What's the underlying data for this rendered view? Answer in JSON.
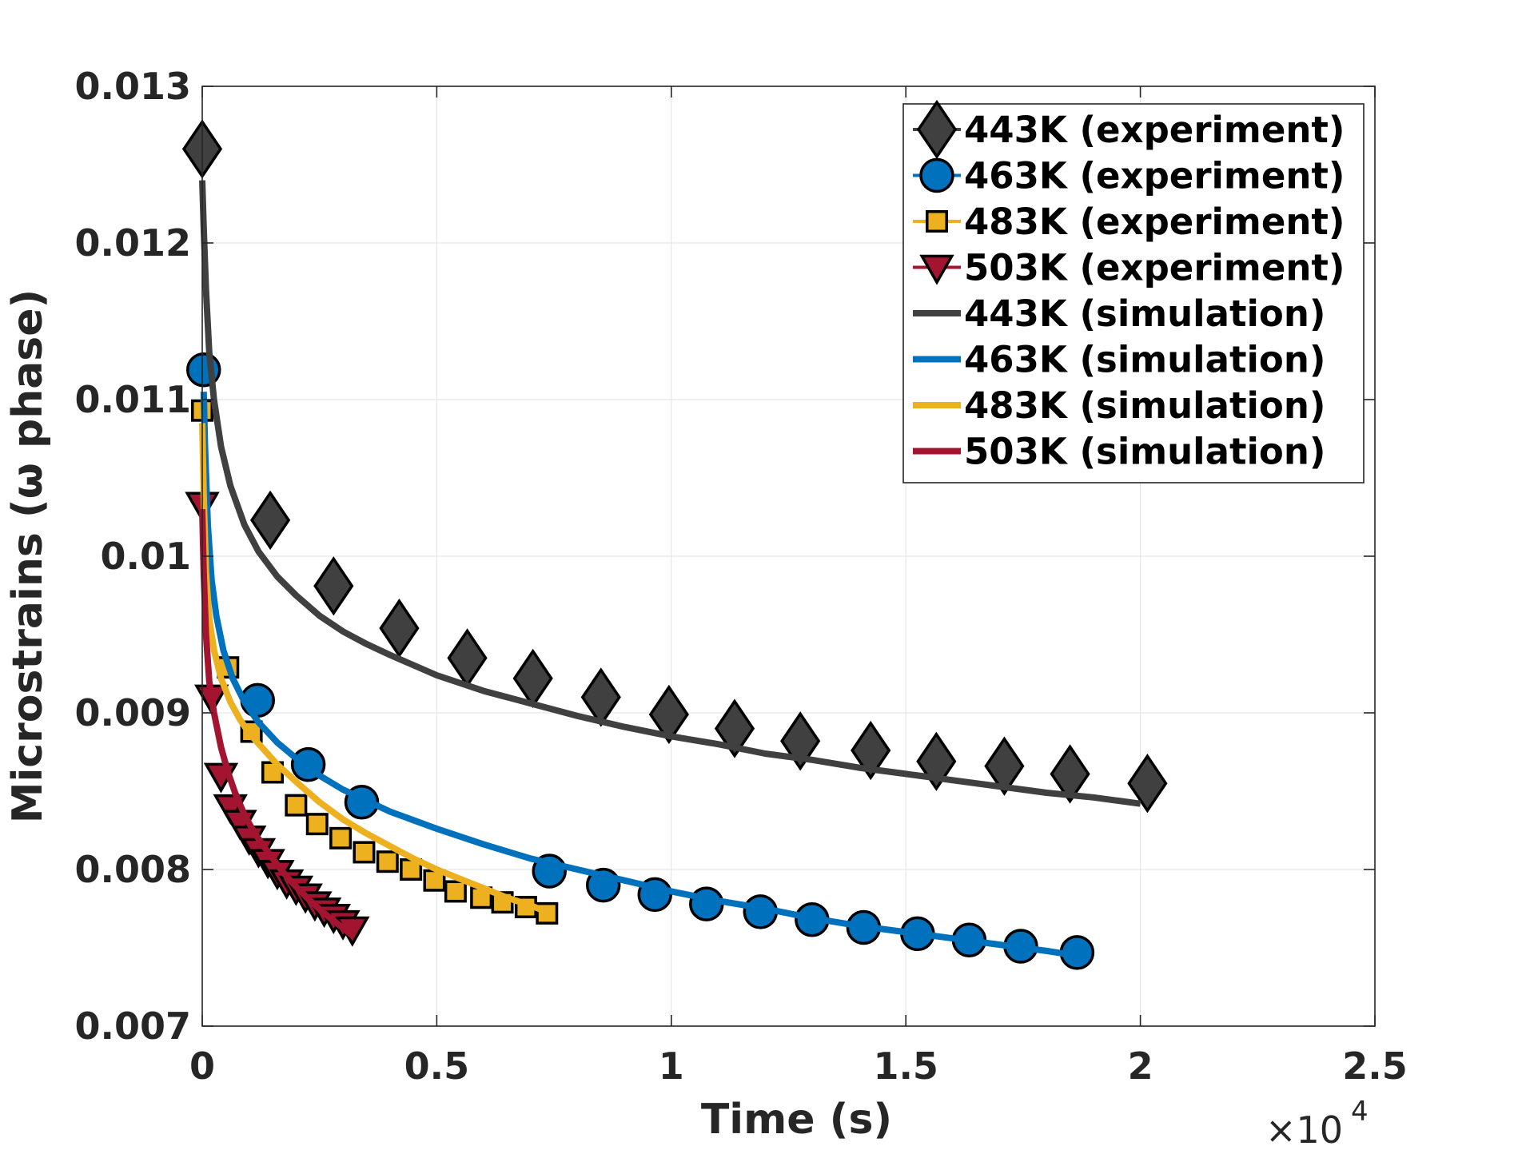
{
  "chart_data": {
    "type": "line",
    "xlabel": "Time (s)",
    "ylabel": "Microstrains (ω phase)",
    "x_exponent_label": "×10",
    "x_exponent_power": "4",
    "xlim": [
      0,
      25000
    ],
    "ylim": [
      0.007,
      0.013
    ],
    "x_ticks": [
      0,
      5000,
      10000,
      15000,
      20000,
      25000
    ],
    "x_tick_labels": [
      "0",
      "0.5",
      "1",
      "1.5",
      "2",
      "2.5"
    ],
    "y_ticks": [
      0.007,
      0.008,
      0.009,
      0.01,
      0.011,
      0.012,
      0.013
    ],
    "y_tick_labels": [
      "0.007",
      "0.008",
      "0.009",
      "0.01",
      "0.011",
      "0.012",
      "0.013"
    ],
    "grid": true,
    "legend_position": "top-right",
    "series": [
      {
        "name": "443K (experiment)",
        "kind": "markers",
        "marker": "diamond",
        "color": "#404040",
        "x": [
          0,
          1450,
          2800,
          4200,
          5650,
          7050,
          8500,
          9950,
          11350,
          12750,
          14250,
          15650,
          17100,
          18500,
          20150
        ],
        "y": [
          0.0126,
          0.01023,
          0.00981,
          0.00954,
          0.00935,
          0.00922,
          0.0091,
          0.00899,
          0.0089,
          0.00882,
          0.00876,
          0.00869,
          0.00866,
          0.00861,
          0.00855
        ]
      },
      {
        "name": "463K (experiment)",
        "kind": "markers",
        "marker": "circle",
        "color": "#0072bd",
        "x": [
          30,
          1180,
          2260,
          3400,
          7400,
          8550,
          9650,
          10750,
          11900,
          13000,
          14100,
          15250,
          16350,
          17450,
          18650
        ],
        "y": [
          0.01119,
          0.00908,
          0.00867,
          0.00843,
          0.00799,
          0.0079,
          0.00784,
          0.00778,
          0.00773,
          0.00768,
          0.00763,
          0.00759,
          0.00755,
          0.00751,
          0.00747
        ]
      },
      {
        "name": "483K (experiment)",
        "kind": "markers",
        "marker": "square",
        "color": "#edb120",
        "x": [
          0,
          550,
          1050,
          1500,
          2000,
          2450,
          2950,
          3450,
          3950,
          4450,
          4950,
          5400,
          5950,
          6400,
          6900,
          7350
        ],
        "y": [
          0.01093,
          0.00929,
          0.00888,
          0.00862,
          0.00841,
          0.00829,
          0.0082,
          0.00811,
          0.00805,
          0.008,
          0.00793,
          0.00786,
          0.00782,
          0.00779,
          0.00776,
          0.00772
        ]
      },
      {
        "name": "503K (experiment)",
        "kind": "markers",
        "marker": "triangle-down",
        "color": "#a2142f",
        "x": [
          0,
          200,
          400,
          600,
          800,
          1000,
          1200,
          1400,
          1600,
          1800,
          2000,
          2200,
          2400,
          2600,
          2800,
          3000,
          3200
        ],
        "y": [
          0.01033,
          0.0091,
          0.0086,
          0.0084,
          0.0083,
          0.0082,
          0.00812,
          0.00805,
          0.00798,
          0.00792,
          0.00788,
          0.00783,
          0.00778,
          0.00774,
          0.0077,
          0.00766,
          0.00762
        ]
      },
      {
        "name": "443K (simulation)",
        "kind": "line",
        "color": "#404040",
        "x": [
          0,
          30,
          80,
          150,
          250,
          400,
          600,
          900,
          1200,
          1600,
          2000,
          2500,
          3000,
          3500,
          4000,
          5000,
          6000,
          7000,
          8000,
          9000,
          10000,
          11000,
          12000,
          13000,
          14000,
          15000,
          16000,
          17000,
          18000,
          19000,
          20000
        ],
        "y": [
          0.0124,
          0.0121,
          0.0117,
          0.0113,
          0.011,
          0.0107,
          0.01045,
          0.0102,
          0.01003,
          0.00987,
          0.00975,
          0.00962,
          0.00952,
          0.00944,
          0.00937,
          0.00924,
          0.00914,
          0.00906,
          0.00898,
          0.00891,
          0.00885,
          0.0088,
          0.00874,
          0.0087,
          0.00865,
          0.00861,
          0.00857,
          0.00853,
          0.00849,
          0.00846,
          0.00842
        ]
      },
      {
        "name": "463K (simulation)",
        "kind": "line",
        "color": "#0072bd",
        "x": [
          30,
          60,
          120,
          200,
          300,
          450,
          650,
          900,
          1200,
          1600,
          2000,
          2500,
          3000,
          3500,
          4000,
          5000,
          6000,
          7000,
          8000,
          9000,
          10000,
          11000,
          12000,
          13000,
          14000,
          15000,
          16000,
          17000,
          18000,
          18650
        ],
        "y": [
          0.01105,
          0.0107,
          0.0102,
          0.00985,
          0.00962,
          0.0094,
          0.00922,
          0.00907,
          0.00894,
          0.00881,
          0.00871,
          0.0086,
          0.00851,
          0.00844,
          0.00837,
          0.00826,
          0.00816,
          0.00807,
          0.008,
          0.00793,
          0.00786,
          0.0078,
          0.00775,
          0.00769,
          0.00764,
          0.0076,
          0.00756,
          0.00752,
          0.00748,
          0.00745
        ]
      },
      {
        "name": "483K (simulation)",
        "kind": "line",
        "color": "#edb120",
        "x": [
          0,
          30,
          80,
          150,
          250,
          400,
          600,
          800,
          1000,
          1300,
          1600,
          2000,
          2500,
          3000,
          3500,
          4000,
          4500,
          5000,
          5500,
          6000,
          6500,
          7000,
          7350
        ],
        "y": [
          0.01085,
          0.0104,
          0.0099,
          0.0096,
          0.0094,
          0.00922,
          0.00907,
          0.00896,
          0.00887,
          0.00877,
          0.00867,
          0.00856,
          0.00843,
          0.00832,
          0.00823,
          0.00815,
          0.00807,
          0.008,
          0.00794,
          0.00788,
          0.00782,
          0.00777,
          0.00773
        ]
      },
      {
        "name": "503K (simulation)",
        "kind": "line",
        "color": "#a2142f",
        "x": [
          0,
          30,
          80,
          150,
          250,
          400,
          550,
          700,
          900,
          1100,
          1400,
          1700,
          2000,
          2300,
          2600,
          2900,
          3200
        ],
        "y": [
          0.0103,
          0.0099,
          0.0095,
          0.0092,
          0.009,
          0.00878,
          0.00862,
          0.00849,
          0.00835,
          0.00824,
          0.00811,
          0.00799,
          0.00789,
          0.0078,
          0.00772,
          0.00765,
          0.00758
        ]
      }
    ]
  }
}
